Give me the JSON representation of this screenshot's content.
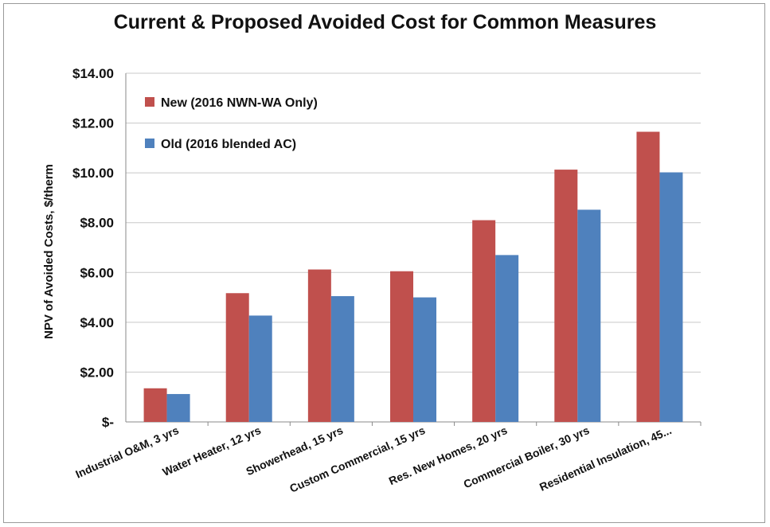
{
  "chart_data": {
    "type": "bar",
    "title": "Current & Proposed Avoided Cost for Common Measures",
    "xlabel": "",
    "ylabel": "NPV of Avoided Costs, $/therm",
    "ylim": [
      0,
      14
    ],
    "yticks": [
      0,
      2,
      4,
      6,
      8,
      10,
      12,
      14
    ],
    "ytick_labels": [
      "$-",
      "$2.00",
      "$4.00",
      "$6.00",
      "$8.00",
      "$10.00",
      "$12.00",
      "$14.00"
    ],
    "grid": true,
    "legend_position": "top-left",
    "categories": [
      "Industrial O&M, 3 yrs",
      "Water Heater, 12 yrs",
      "Showerhead, 15 yrs",
      "Custom Commercial, 15 yrs",
      "Res. New Homes, 20 yrs",
      "Commercial Boiler, 30 yrs",
      "Residential Insulation, 45..."
    ],
    "series": [
      {
        "name": "New (2016 NWN-WA Only)",
        "color": "#c0504d",
        "values": [
          1.35,
          5.17,
          6.12,
          6.05,
          8.1,
          10.13,
          11.65
        ]
      },
      {
        "name": "Old (2016 blended AC)",
        "color": "#4f81bd",
        "values": [
          1.12,
          4.27,
          5.05,
          5.0,
          6.7,
          8.52,
          10.02
        ]
      }
    ]
  }
}
